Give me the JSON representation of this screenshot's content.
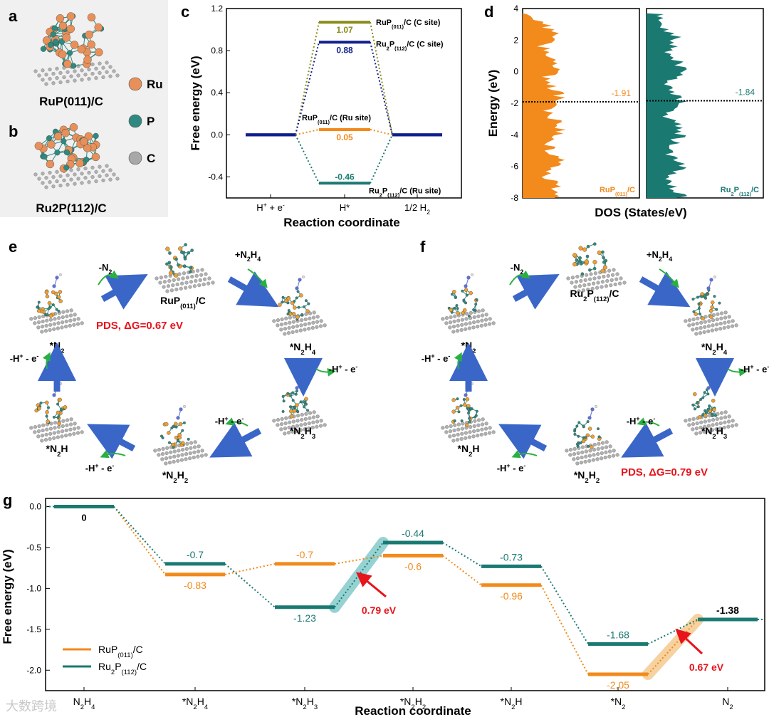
{
  "colors": {
    "orange": "#f28a1c",
    "teal": "#1a7a72",
    "olive": "#8a8a1a",
    "navy": "#10208c",
    "red": "#e8141c",
    "blue_arrow": "#3a66c8",
    "green_arrow": "#28b040",
    "ru": "#f0a070",
    "p": "#3a8a80",
    "c": "#b0b0b0"
  },
  "panel_a": {
    "letter_a": "a",
    "letter_b": "b",
    "label_a": "RuP(011)/C",
    "label_b": "Ru2P(112)/C",
    "legend": [
      {
        "symbol": "Ru",
        "color": "#e8905a"
      },
      {
        "symbol": "P",
        "color": "#2e8a80"
      },
      {
        "symbol": "C",
        "color": "#a8a8a8"
      }
    ]
  },
  "chart_data": [
    {
      "id": "c",
      "letter": "c",
      "type": "line",
      "title": "",
      "xlabel": "Reaction coordinate",
      "ylabel": "Free energy (eV)",
      "categories": [
        "H+ + e-",
        "H*",
        "1/2 H2"
      ],
      "ylim": [
        -0.6,
        1.2
      ],
      "yticks": [
        "1.2",
        "0.8",
        "0.4",
        "0.0",
        "-0.4"
      ],
      "series": [
        {
          "name": "RuP(011)/C (C site)",
          "values": [
            0,
            1.07,
            0
          ],
          "color": "#8a8a1a",
          "label": "1.07"
        },
        {
          "name": "Ru2P(112)/C (C site)",
          "values": [
            0,
            0.88,
            0
          ],
          "color": "#10208c",
          "label": "0.88"
        },
        {
          "name": "RuP(011)/C (Ru site)",
          "values": [
            0,
            0.05,
            0
          ],
          "color": "#f28a1c",
          "label": "0.05"
        },
        {
          "name": "Ru2P(112)/C (Ru site)",
          "values": [
            0,
            -0.46,
            0
          ],
          "color": "#1a7a72",
          "label": "-0.46"
        }
      ],
      "annotations": [
        "RuP(011)/C (C site)",
        "Ru2P(112)/C (C site)",
        "RuP(011)/C (Ru site)",
        "Ru2P(112)/C (Ru site)"
      ]
    },
    {
      "id": "d",
      "letter": "d",
      "type": "area",
      "xlabel": "DOS (States/eV)",
      "ylabel": "Energy (eV)",
      "ylim": [
        -8,
        4
      ],
      "yticks": [
        "4",
        "2",
        "0",
        "-2",
        "-4",
        "-6",
        "-8"
      ],
      "series": [
        {
          "name": "RuP(011)/C",
          "d_band_center": -1.91,
          "label": "-1.91",
          "color": "#f28a1c"
        },
        {
          "name": "Ru2P(112)/C",
          "d_band_center": -1.84,
          "label": "-1.84",
          "color": "#1a7a72"
        }
      ]
    },
    {
      "id": "g",
      "letter": "g",
      "type": "line",
      "xlabel": "Reaction coordinate",
      "ylabel": "Free energy (eV)",
      "categories": [
        "N2H4",
        "*N2H4",
        "*N2H3",
        "*N2H2",
        "*N2H",
        "*N2",
        "N2"
      ],
      "ylim": [
        -2.25,
        0.1
      ],
      "yticks": [
        "0.0",
        "-0.5",
        "-1.0",
        "-1.5",
        "-2.0"
      ],
      "series": [
        {
          "name": "RuP(011)/C",
          "values": [
            0,
            -0.83,
            -0.7,
            -0.6,
            -0.96,
            -2.05,
            -1.38
          ],
          "labels": [
            "0",
            "-0.83",
            "-0.7",
            "-0.6",
            "-0.96",
            "-2.05",
            "-1.38"
          ],
          "color": "#f28a1c"
        },
        {
          "name": "Ru2P(112)/C",
          "values": [
            0,
            -0.7,
            -1.23,
            -0.44,
            -0.73,
            -1.68,
            -1.38
          ],
          "labels": [
            "0",
            "-0.7",
            "-1.23",
            "-0.44",
            "-0.73",
            "-1.68",
            "-1.38"
          ],
          "color": "#1a7a72"
        }
      ],
      "annotations": [
        {
          "text": "0.79 eV",
          "step": 3
        },
        {
          "text": "0.67 eV",
          "step": 6
        }
      ]
    }
  ],
  "panel_e": {
    "letter": "e",
    "center_label": "RuP(011)/C",
    "pds": "PDS, ΔG=0.67 eV",
    "species": [
      "*N2",
      "*N2H4",
      "*N2H3",
      "*N2H2",
      "*N2H"
    ],
    "steps": [
      "-N2",
      "+N2H4",
      "-H+ - e-",
      "-H+ - e-",
      "-H+ - e-",
      "-H+ - e-"
    ]
  },
  "panel_f": {
    "letter": "f",
    "center_label": "Ru2P(112)/C",
    "pds": "PDS, ΔG=0.79 eV",
    "species": [
      "*N2",
      "*N2H4",
      "*N2H3",
      "*N2H2",
      "*N2H"
    ],
    "steps": [
      "-N2",
      "+N2H4",
      "-H+ - e-",
      "-H+ - e-",
      "-H+ - e-",
      "-H+ - e-"
    ]
  },
  "watermark": "大数跨境"
}
